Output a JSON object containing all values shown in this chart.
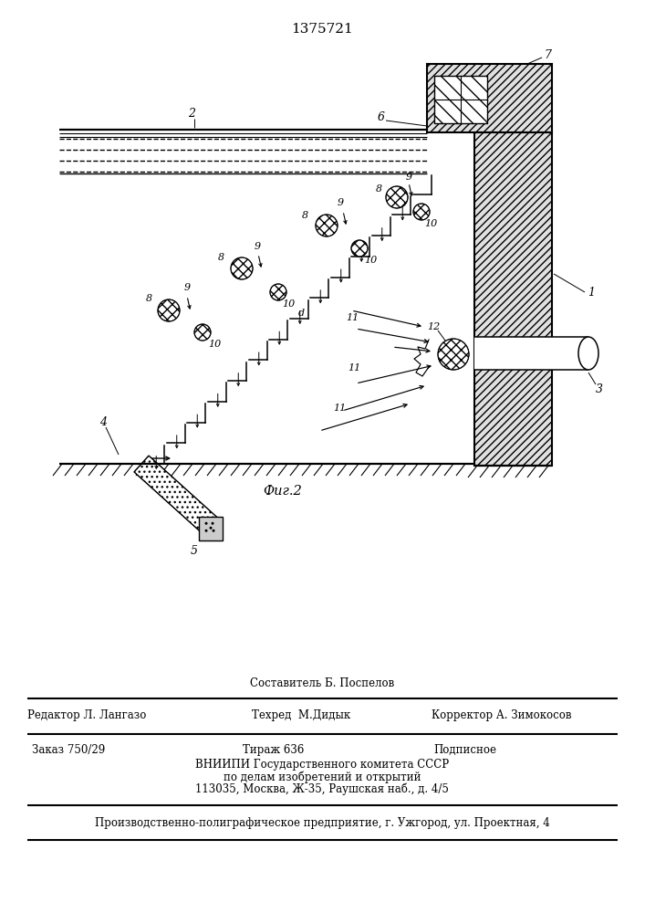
{
  "patent_number": "1375721",
  "fig_label": "Фиг.2",
  "bg_color": "#ffffff",
  "footer_line1": "Составитель Б. Поспелов",
  "footer_line2_left": "Редактор Л. Лангазо",
  "footer_line2_mid": "Техред  М.Дидык",
  "footer_line2_right": "Корректор А. Зимокосов",
  "footer_line3_left": "Заказ 750/29",
  "footer_line3_mid": "Тираж 636",
  "footer_line3_right": "Подписное",
  "footer_line4": "ВНИИПИ Государственного комитета СССР",
  "footer_line5": "по делам изобретений и открытий",
  "footer_line6": "113035, Москва, Ж-35, Раушская наб., д. 4/5",
  "footer_line7": "Производственно-полиграфическое предприятие, г. Ужгород, ул. Проектная, 4"
}
